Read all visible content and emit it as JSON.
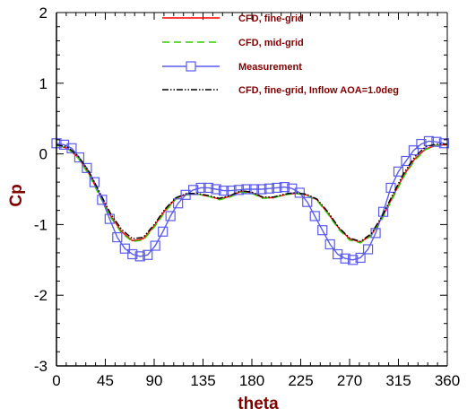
{
  "chart_data": {
    "type": "line",
    "xlabel": "theta",
    "ylabel": "Cp",
    "xlim": [
      0,
      360
    ],
    "ylim": [
      -3,
      2
    ],
    "xticks": [
      0,
      45,
      90,
      135,
      180,
      225,
      270,
      315,
      360
    ],
    "yticks": [
      -3,
      -2,
      -1,
      0,
      1,
      2
    ],
    "grid": false,
    "legend_position": "top-right",
    "series": [
      {
        "name": "CFD, fine-grid",
        "color": "#ff0000",
        "style": "solid",
        "x": [
          0,
          10,
          20,
          30,
          40,
          50,
          60,
          70,
          80,
          90,
          100,
          110,
          120,
          130,
          140,
          150,
          160,
          170,
          180,
          190,
          200,
          210,
          220,
          230,
          240,
          250,
          260,
          270,
          280,
          290,
          300,
          310,
          320,
          330,
          340,
          350,
          360
        ],
        "y": [
          0.12,
          0.08,
          -0.05,
          -0.28,
          -0.58,
          -0.88,
          -1.1,
          -1.23,
          -1.2,
          -1.02,
          -0.8,
          -0.63,
          -0.57,
          -0.57,
          -0.6,
          -0.64,
          -0.6,
          -0.53,
          -0.55,
          -0.62,
          -0.62,
          -0.58,
          -0.56,
          -0.58,
          -0.65,
          -0.84,
          -1.05,
          -1.2,
          -1.25,
          -1.15,
          -0.9,
          -0.6,
          -0.3,
          -0.07,
          0.07,
          0.12,
          0.13
        ]
      },
      {
        "name": "CFD, mid-grid",
        "color": "#33cc00",
        "style": "dashed",
        "x": [
          0,
          10,
          20,
          30,
          40,
          50,
          60,
          70,
          80,
          90,
          100,
          110,
          120,
          130,
          140,
          150,
          160,
          170,
          180,
          190,
          200,
          210,
          220,
          230,
          240,
          250,
          260,
          270,
          280,
          290,
          300,
          310,
          320,
          330,
          340,
          350,
          360
        ],
        "y": [
          0.12,
          0.08,
          -0.06,
          -0.3,
          -0.6,
          -0.9,
          -1.12,
          -1.24,
          -1.22,
          -1.04,
          -0.82,
          -0.64,
          -0.58,
          -0.57,
          -0.6,
          -0.65,
          -0.61,
          -0.54,
          -0.56,
          -0.63,
          -0.62,
          -0.58,
          -0.56,
          -0.58,
          -0.66,
          -0.85,
          -1.07,
          -1.22,
          -1.26,
          -1.16,
          -0.92,
          -0.62,
          -0.32,
          -0.09,
          0.06,
          0.12,
          0.13
        ]
      },
      {
        "name": "Measurement",
        "color": "#5b5bea",
        "style": "solid",
        "marker": "square",
        "x": [
          0,
          7,
          14,
          21,
          28,
          35,
          42,
          49,
          56,
          63,
          70,
          77,
          84,
          91,
          98,
          105,
          112,
          119,
          126,
          133,
          140,
          147,
          154,
          161,
          168,
          175,
          182,
          189,
          196,
          203,
          210,
          217,
          224,
          231,
          238,
          245,
          252,
          259,
          266,
          273,
          280,
          287,
          294,
          301,
          308,
          315,
          322,
          329,
          336,
          343,
          350,
          357
        ],
        "y": [
          0.15,
          0.13,
          0.08,
          -0.05,
          -0.2,
          -0.4,
          -0.65,
          -0.92,
          -1.18,
          -1.34,
          -1.42,
          -1.45,
          -1.43,
          -1.3,
          -1.1,
          -0.88,
          -0.7,
          -0.58,
          -0.51,
          -0.48,
          -0.48,
          -0.5,
          -0.52,
          -0.52,
          -0.51,
          -0.5,
          -0.5,
          -0.5,
          -0.49,
          -0.48,
          -0.47,
          -0.49,
          -0.55,
          -0.68,
          -0.88,
          -1.08,
          -1.28,
          -1.42,
          -1.48,
          -1.5,
          -1.47,
          -1.35,
          -1.12,
          -0.82,
          -0.48,
          -0.25,
          -0.1,
          0.05,
          0.14,
          0.18,
          0.17,
          0.15
        ]
      },
      {
        "name": "CFD, fine-grid, Inflow AOA=1.0deg",
        "color": "#000000",
        "style": "dashdotdot",
        "x": [
          0,
          10,
          20,
          30,
          40,
          50,
          60,
          70,
          80,
          90,
          100,
          110,
          120,
          130,
          140,
          150,
          160,
          170,
          180,
          190,
          200,
          210,
          220,
          230,
          240,
          250,
          260,
          270,
          280,
          290,
          300,
          310,
          320,
          330,
          340,
          350,
          360
        ],
        "y": [
          0.13,
          0.1,
          -0.03,
          -0.25,
          -0.55,
          -0.85,
          -1.07,
          -1.2,
          -1.18,
          -1.0,
          -0.78,
          -0.62,
          -0.56,
          -0.56,
          -0.59,
          -0.63,
          -0.59,
          -0.52,
          -0.54,
          -0.61,
          -0.61,
          -0.57,
          -0.55,
          -0.57,
          -0.64,
          -0.82,
          -1.04,
          -1.19,
          -1.24,
          -1.13,
          -0.88,
          -0.57,
          -0.27,
          -0.04,
          0.1,
          0.14,
          0.14
        ]
      }
    ]
  }
}
